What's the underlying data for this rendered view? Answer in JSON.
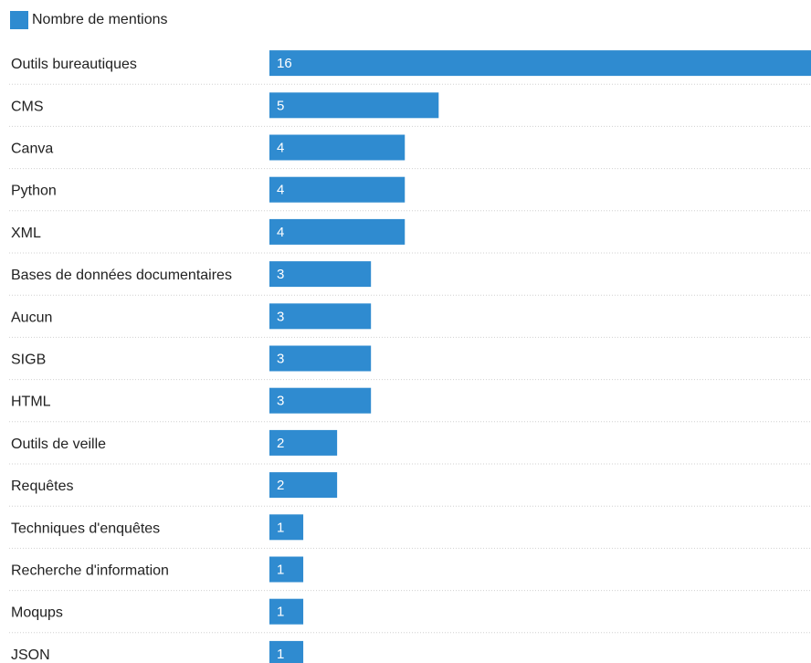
{
  "chart_data": {
    "type": "bar",
    "orientation": "horizontal",
    "legend": {
      "label": "Nombre de mentions",
      "position": "top-left"
    },
    "series": [
      {
        "name": "Nombre de mentions",
        "values": [
          16,
          5,
          4,
          4,
          4,
          3,
          3,
          3,
          3,
          2,
          2,
          1,
          1,
          1,
          1
        ]
      }
    ],
    "categories": [
      "Outils bureautiques",
      "CMS",
      "Canva",
      "Python",
      "XML",
      "Bases de données documentaires",
      "Aucun",
      "SIGB",
      "HTML",
      "Outils de veille",
      "Requêtes",
      "Techniques d'enquêtes",
      "Recherche d'information",
      "Moqups",
      "JSON"
    ],
    "values": [
      16,
      5,
      4,
      4,
      4,
      3,
      3,
      3,
      3,
      2,
      2,
      1,
      1,
      1,
      1
    ],
    "xlim": [
      0,
      16
    ],
    "data_labels": true,
    "grid": false
  },
  "colors": {
    "bar": "#2f8bd0",
    "background": "#ffffff"
  }
}
